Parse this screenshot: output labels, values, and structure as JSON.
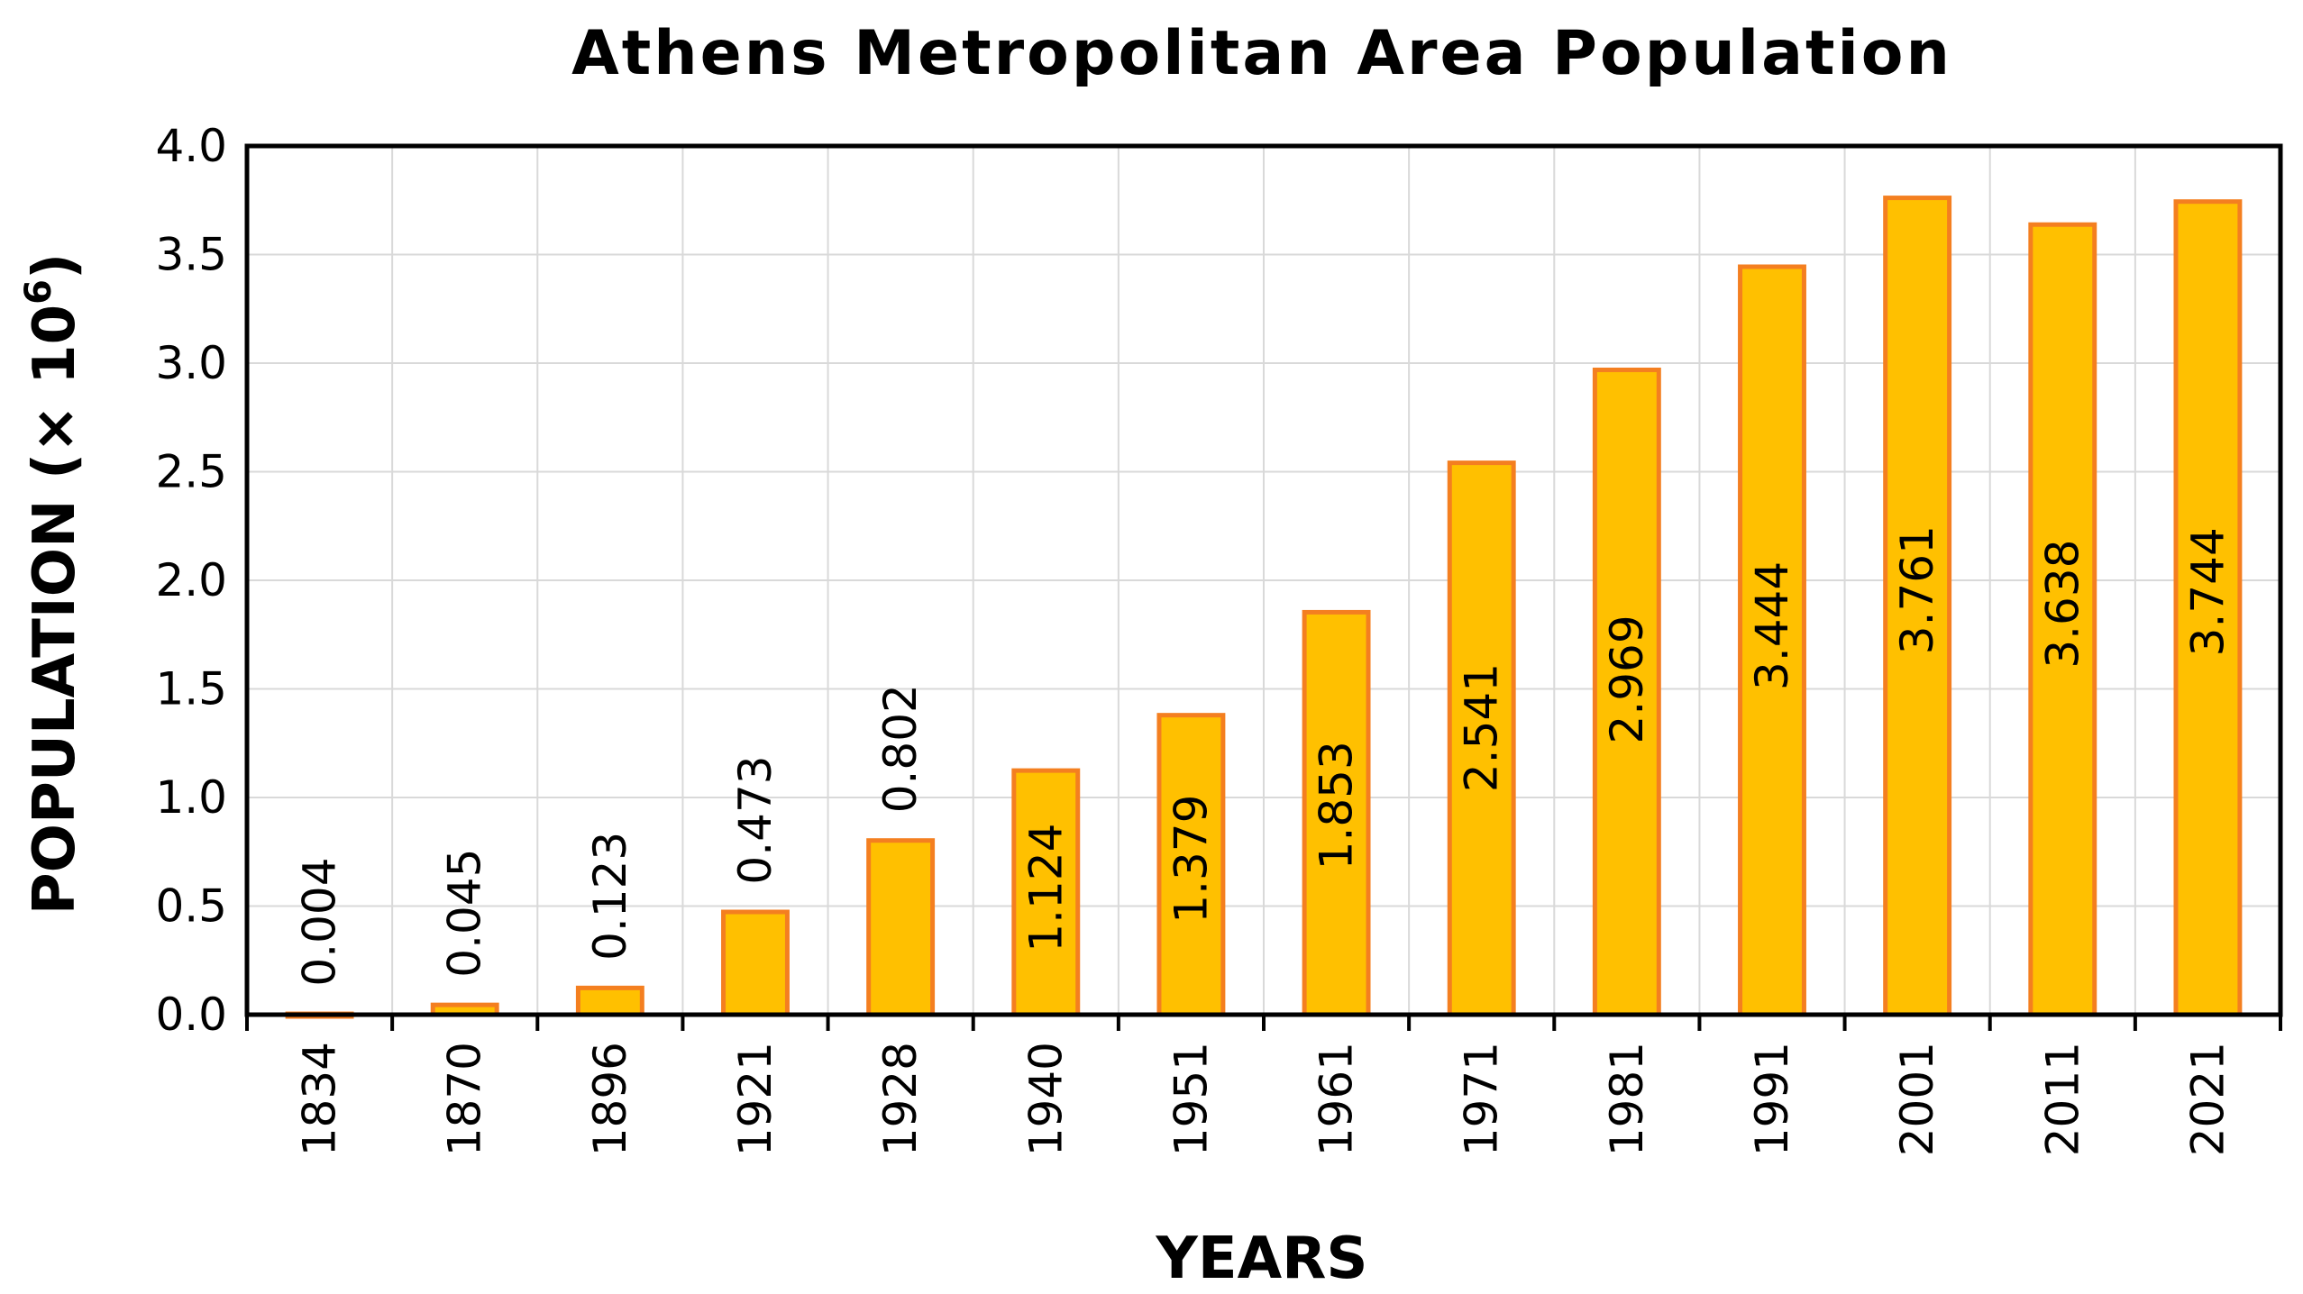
{
  "chart_data": {
    "type": "bar",
    "title": "Athens Metropolitan Area Population",
    "xlabel": "YEARS",
    "ylabel": "POPULATION (× 10",
    "ylabel_superscript": "6",
    "ylabel_suffix": ")",
    "categories": [
      "1834",
      "1870",
      "1896",
      "1921",
      "1928",
      "1940",
      "1951",
      "1961",
      "1971",
      "1981",
      "1991",
      "2001",
      "2011",
      "2021"
    ],
    "values": [
      0.004,
      0.045,
      0.123,
      0.473,
      0.802,
      1.124,
      1.379,
      1.853,
      2.541,
      2.969,
      3.444,
      3.761,
      3.638,
      3.744
    ],
    "data_labels": [
      "0.004",
      "0.045",
      "0.123",
      "0.473",
      "0.802",
      "1.124",
      "1.379",
      "1.853",
      "2.541",
      "2.969",
      "3.444",
      "3.761",
      "3.638",
      "3.744"
    ],
    "ylim": [
      0,
      4.0
    ],
    "yticks": [
      0,
      0.5,
      1.0,
      1.5,
      2.0,
      2.5,
      3.0,
      3.5,
      4.0
    ],
    "ytick_labels": [
      "0.0",
      "0.5",
      "1.0",
      "1.5",
      "2.0",
      "2.5",
      "3.0",
      "3.5",
      "4.0"
    ],
    "grid": true,
    "legend": "none",
    "colors": {
      "bar_fill": "#FFC000",
      "bar_stroke": "#F47F20",
      "grid": "#D9D9D9",
      "axis": "#000000"
    }
  }
}
